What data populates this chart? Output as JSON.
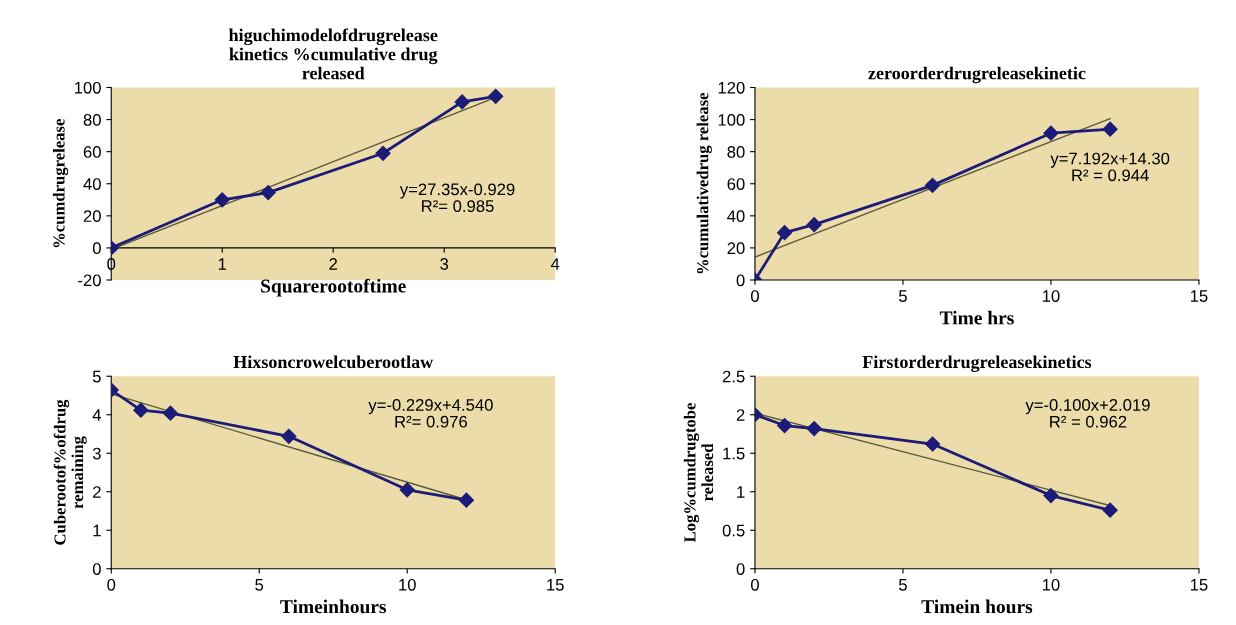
{
  "chart_data": [
    {
      "type": "line",
      "title": "higuchimodelofdrugrelease\nkinetics %cumulative drug\nreleased",
      "xlabel": "Squarerootoftime",
      "ylabel": "%cumdrugrelease",
      "xlim": [
        0,
        4
      ],
      "xticks": [
        0,
        1,
        2,
        3,
        4
      ],
      "ylim": [
        -20,
        100
      ],
      "yticks": [
        -20,
        0,
        20,
        40,
        60,
        80,
        100
      ],
      "grid": false,
      "annotations": [
        "y=27.35x-0.929\nR²= 0.985"
      ],
      "series": [
        {
          "color": "#1c1c78",
          "marker": "diamond",
          "x": [
            0,
            1,
            1.414,
            2.449,
            3.162,
            3.464
          ],
          "values": [
            0,
            30,
            34.5,
            59,
            91,
            94.5
          ]
        },
        {
          "color": "#5a5a3c",
          "marker": "none",
          "x": [
            0,
            3.464
          ],
          "values": [
            -0.9,
            93.8
          ]
        }
      ]
    },
    {
      "type": "line",
      "title": "zeroorderdrugreleasekinetic",
      "xlabel": "Time hrs",
      "ylabel": "%cumulativedrug release",
      "xlim": [
        0,
        15
      ],
      "xticks": [
        0,
        5,
        10,
        15
      ],
      "ylim": [
        0,
        120
      ],
      "yticks": [
        0,
        20,
        40,
        60,
        80,
        100,
        120
      ],
      "grid": false,
      "annotations": [
        "y=7.192x+14.30\nR² = 0.944"
      ],
      "series": [
        {
          "color": "#1c1c78",
          "marker": "diamond",
          "x": [
            0,
            1,
            2,
            6,
            10,
            12
          ],
          "values": [
            0,
            29.5,
            34.5,
            59,
            91.5,
            94
          ]
        },
        {
          "color": "#5a5a3c",
          "marker": "none",
          "x": [
            0,
            12
          ],
          "values": [
            14.3,
            100.6
          ]
        }
      ]
    },
    {
      "type": "line",
      "title": "Hixsoncrowelcuberootlaw",
      "xlabel": "Timeinhours",
      "ylabel": "Cuberootof%ofdrug\nremaining",
      "xlim": [
        0,
        15
      ],
      "xticks": [
        0,
        5,
        10,
        15
      ],
      "ylim": [
        0,
        5
      ],
      "yticks": [
        0,
        1,
        2,
        3,
        4,
        5
      ],
      "grid": false,
      "annotations": [
        "y=-0.229x+4.540\nR²= 0.976"
      ],
      "series": [
        {
          "color": "#1c1c78",
          "marker": "diamond",
          "x": [
            0,
            1,
            2,
            6,
            10,
            12
          ],
          "values": [
            4.64,
            4.12,
            4.04,
            3.44,
            2.05,
            1.78
          ]
        },
        {
          "color": "#5a5a3c",
          "marker": "none",
          "x": [
            0,
            12
          ],
          "values": [
            4.54,
            1.79
          ]
        }
      ]
    },
    {
      "type": "line",
      "title": "Firstorderdrugreleasekinetics",
      "xlabel": "Timein hours",
      "ylabel": "Log%cumdrugtobe\nreleased",
      "xlim": [
        0,
        15
      ],
      "xticks": [
        0,
        5,
        10,
        15
      ],
      "ylim": [
        0,
        2.5
      ],
      "yticks": [
        0,
        0.5,
        1,
        1.5,
        2,
        2.5
      ],
      "grid": false,
      "annotations": [
        "y=-0.100x+2.019\nR² = 0.962"
      ],
      "series": [
        {
          "color": "#1c1c78",
          "marker": "diamond",
          "x": [
            0,
            1,
            2,
            6,
            10,
            12
          ],
          "values": [
            2.0,
            1.86,
            1.82,
            1.62,
            0.95,
            0.76
          ]
        },
        {
          "color": "#5a5a3c",
          "marker": "none",
          "x": [
            0,
            12
          ],
          "values": [
            2.02,
            0.82
          ]
        }
      ]
    }
  ]
}
